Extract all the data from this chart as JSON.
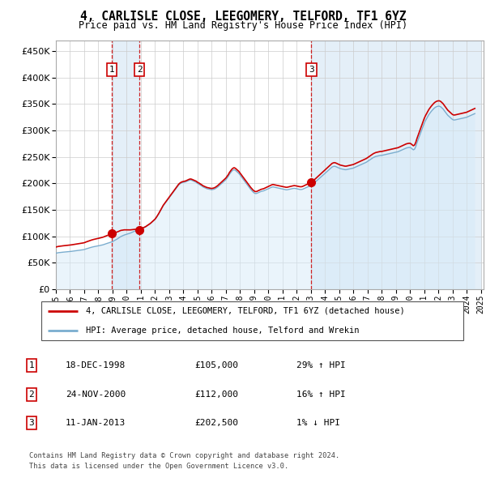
{
  "title": "4, CARLISLE CLOSE, LEEGOMERY, TELFORD, TF1 6YZ",
  "subtitle": "Price paid vs. HM Land Registry's House Price Index (HPI)",
  "legend_line1": "4, CARLISLE CLOSE, LEEGOMERY, TELFORD, TF1 6YZ (detached house)",
  "legend_line2": "HPI: Average price, detached house, Telford and Wrekin",
  "footer1": "Contains HM Land Registry data © Crown copyright and database right 2024.",
  "footer2": "This data is licensed under the Open Government Licence v3.0.",
  "sale_color": "#cc0000",
  "hpi_color": "#7aadcf",
  "hpi_fill_color": "#ddeeff",
  "vline_color": "#cc0000",
  "ylim": [
    0,
    470000
  ],
  "yticks": [
    0,
    50000,
    100000,
    150000,
    200000,
    250000,
    300000,
    350000,
    400000,
    450000
  ],
  "sales": [
    {
      "date_num": 1998.96,
      "price": 105000,
      "label": "1"
    },
    {
      "date_num": 2000.9,
      "price": 112000,
      "label": "2"
    },
    {
      "date_num": 2013.04,
      "price": 202500,
      "label": "3"
    }
  ],
  "table_rows": [
    {
      "num": "1",
      "date": "18-DEC-1998",
      "price": "£105,000",
      "hpi": "29% ↑ HPI"
    },
    {
      "num": "2",
      "date": "24-NOV-2000",
      "price": "£112,000",
      "hpi": "16% ↑ HPI"
    },
    {
      "num": "3",
      "date": "11-JAN-2013",
      "price": "£202,500",
      "hpi": "1% ↓ HPI"
    }
  ],
  "hpi_monthly": {
    "dates": [
      1995.0,
      1995.083,
      1995.167,
      1995.25,
      1995.333,
      1995.417,
      1995.5,
      1995.583,
      1995.667,
      1995.75,
      1995.833,
      1995.917,
      1996.0,
      1996.083,
      1996.167,
      1996.25,
      1996.333,
      1996.417,
      1996.5,
      1996.583,
      1996.667,
      1996.75,
      1996.833,
      1996.917,
      1997.0,
      1997.083,
      1997.167,
      1997.25,
      1997.333,
      1997.417,
      1997.5,
      1997.583,
      1997.667,
      1997.75,
      1997.833,
      1997.917,
      1998.0,
      1998.083,
      1998.167,
      1998.25,
      1998.333,
      1998.417,
      1998.5,
      1998.583,
      1998.667,
      1998.75,
      1998.833,
      1998.917,
      1999.0,
      1999.083,
      1999.167,
      1999.25,
      1999.333,
      1999.417,
      1999.5,
      1999.583,
      1999.667,
      1999.75,
      1999.833,
      1999.917,
      2000.0,
      2000.083,
      2000.167,
      2000.25,
      2000.333,
      2000.417,
      2000.5,
      2000.583,
      2000.667,
      2000.75,
      2000.833,
      2000.917,
      2001.0,
      2001.083,
      2001.167,
      2001.25,
      2001.333,
      2001.417,
      2001.5,
      2001.583,
      2001.667,
      2001.75,
      2001.833,
      2001.917,
      2002.0,
      2002.083,
      2002.167,
      2002.25,
      2002.333,
      2002.417,
      2002.5,
      2002.583,
      2002.667,
      2002.75,
      2002.833,
      2002.917,
      2003.0,
      2003.083,
      2003.167,
      2003.25,
      2003.333,
      2003.417,
      2003.5,
      2003.583,
      2003.667,
      2003.75,
      2003.833,
      2003.917,
      2004.0,
      2004.083,
      2004.167,
      2004.25,
      2004.333,
      2004.417,
      2004.5,
      2004.583,
      2004.667,
      2004.75,
      2004.833,
      2004.917,
      2005.0,
      2005.083,
      2005.167,
      2005.25,
      2005.333,
      2005.417,
      2005.5,
      2005.583,
      2005.667,
      2005.75,
      2005.833,
      2005.917,
      2006.0,
      2006.083,
      2006.167,
      2006.25,
      2006.333,
      2006.417,
      2006.5,
      2006.583,
      2006.667,
      2006.75,
      2006.833,
      2006.917,
      2007.0,
      2007.083,
      2007.167,
      2007.25,
      2007.333,
      2007.417,
      2007.5,
      2007.583,
      2007.667,
      2007.75,
      2007.833,
      2007.917,
      2008.0,
      2008.083,
      2008.167,
      2008.25,
      2008.333,
      2008.417,
      2008.5,
      2008.583,
      2008.667,
      2008.75,
      2008.833,
      2008.917,
      2009.0,
      2009.083,
      2009.167,
      2009.25,
      2009.333,
      2009.417,
      2009.5,
      2009.583,
      2009.667,
      2009.75,
      2009.833,
      2009.917,
      2010.0,
      2010.083,
      2010.167,
      2010.25,
      2010.333,
      2010.417,
      2010.5,
      2010.583,
      2010.667,
      2010.75,
      2010.833,
      2010.917,
      2011.0,
      2011.083,
      2011.167,
      2011.25,
      2011.333,
      2011.417,
      2011.5,
      2011.583,
      2011.667,
      2011.75,
      2011.833,
      2011.917,
      2012.0,
      2012.083,
      2012.167,
      2012.25,
      2012.333,
      2012.417,
      2012.5,
      2012.583,
      2012.667,
      2012.75,
      2012.833,
      2012.917,
      2013.0,
      2013.083,
      2013.167,
      2013.25,
      2013.333,
      2013.417,
      2013.5,
      2013.583,
      2013.667,
      2013.75,
      2013.833,
      2013.917,
      2014.0,
      2014.083,
      2014.167,
      2014.25,
      2014.333,
      2014.417,
      2014.5,
      2014.583,
      2014.667,
      2014.75,
      2014.833,
      2014.917,
      2015.0,
      2015.083,
      2015.167,
      2015.25,
      2015.333,
      2015.417,
      2015.5,
      2015.583,
      2015.667,
      2015.75,
      2015.833,
      2015.917,
      2016.0,
      2016.083,
      2016.167,
      2016.25,
      2016.333,
      2016.417,
      2016.5,
      2016.583,
      2016.667,
      2016.75,
      2016.833,
      2016.917,
      2017.0,
      2017.083,
      2017.167,
      2017.25,
      2017.333,
      2017.417,
      2017.5,
      2017.583,
      2017.667,
      2017.75,
      2017.833,
      2017.917,
      2018.0,
      2018.083,
      2018.167,
      2018.25,
      2018.333,
      2018.417,
      2018.5,
      2018.583,
      2018.667,
      2018.75,
      2018.833,
      2018.917,
      2019.0,
      2019.083,
      2019.167,
      2019.25,
      2019.333,
      2019.417,
      2019.5,
      2019.583,
      2019.667,
      2019.75,
      2019.833,
      2019.917,
      2020.0,
      2020.083,
      2020.167,
      2020.25,
      2020.333,
      2020.417,
      2020.5,
      2020.583,
      2020.667,
      2020.75,
      2020.833,
      2020.917,
      2021.0,
      2021.083,
      2021.167,
      2021.25,
      2021.333,
      2021.417,
      2021.5,
      2021.583,
      2021.667,
      2021.75,
      2021.833,
      2021.917,
      2022.0,
      2022.083,
      2022.167,
      2022.25,
      2022.333,
      2022.417,
      2022.5,
      2022.583,
      2022.667,
      2022.75,
      2022.833,
      2022.917,
      2023.0,
      2023.083,
      2023.167,
      2023.25,
      2023.333,
      2023.417,
      2023.5,
      2023.583,
      2023.667,
      2023.75,
      2023.833,
      2023.917,
      2024.0,
      2024.083,
      2024.167,
      2024.25,
      2024.333,
      2024.417,
      2024.5,
      2024.583
    ],
    "values": [
      68000,
      68500,
      69000,
      69200,
      69500,
      69800,
      70000,
      70200,
      70400,
      70600,
      70800,
      71000,
      71200,
      71500,
      71800,
      72000,
      72300,
      72600,
      73000,
      73300,
      73600,
      74000,
      74300,
      74600,
      75000,
      75800,
      76500,
      77200,
      77900,
      78500,
      79200,
      79800,
      80300,
      80800,
      81200,
      81600,
      82000,
      82500,
      83000,
      83500,
      84000,
      84800,
      85500,
      86300,
      87000,
      87800,
      88500,
      89200,
      90000,
      91200,
      92500,
      93800,
      95000,
      96500,
      98000,
      99500,
      100500,
      101500,
      102500,
      103200,
      103800,
      104500,
      105200,
      106000,
      107000,
      108000,
      109000,
      110000,
      110500,
      111000,
      111500,
      112000,
      113000,
      114500,
      116000,
      117000,
      118000,
      119500,
      121000,
      122500,
      124000,
      126000,
      128000,
      130000,
      132000,
      135000,
      138500,
      142000,
      146000,
      150000,
      154000,
      158000,
      161000,
      164000,
      167000,
      170000,
      173000,
      176000,
      179000,
      182000,
      185000,
      188000,
      191000,
      194000,
      197000,
      199000,
      200500,
      201500,
      202000,
      202500,
      203000,
      204000,
      205000,
      206000,
      206500,
      206000,
      205000,
      204000,
      203000,
      202000,
      200000,
      199000,
      197500,
      196000,
      194500,
      193000,
      192000,
      191000,
      190000,
      189500,
      189000,
      188500,
      188000,
      188500,
      189000,
      190000,
      191500,
      193000,
      195000,
      197000,
      199000,
      201000,
      203000,
      205000,
      207000,
      210000,
      213000,
      217000,
      220000,
      223000,
      225000,
      226000,
      225000,
      223000,
      221000,
      219000,
      216000,
      213000,
      210000,
      207000,
      204000,
      201000,
      198000,
      195000,
      192000,
      189000,
      186500,
      184000,
      182000,
      181000,
      181000,
      182000,
      183000,
      184000,
      185000,
      185500,
      186000,
      187000,
      188000,
      189000,
      190000,
      191000,
      192000,
      193000,
      193500,
      193000,
      192500,
      192000,
      191500,
      191000,
      190500,
      190000,
      189500,
      189000,
      188500,
      188000,
      188000,
      188500,
      189000,
      189500,
      190000,
      190500,
      190800,
      190500,
      190000,
      189500,
      189000,
      188500,
      188500,
      189000,
      190000,
      191000,
      192000,
      193000,
      194000,
      195000,
      196000,
      197500,
      199000,
      201000,
      203000,
      205000,
      207000,
      209000,
      211000,
      213000,
      215000,
      217000,
      219000,
      221000,
      223000,
      225000,
      227000,
      229000,
      231000,
      232000,
      232500,
      232000,
      231000,
      230000,
      229000,
      228000,
      227500,
      227000,
      226500,
      226000,
      226000,
      226500,
      227000,
      227500,
      228000,
      228500,
      229000,
      230000,
      231000,
      232000,
      233000,
      234000,
      235000,
      236000,
      237000,
      238000,
      239000,
      240000,
      241500,
      243000,
      244500,
      246000,
      247500,
      249000,
      250000,
      251000,
      251500,
      252000,
      252500,
      253000,
      253000,
      253500,
      254000,
      254500,
      255000,
      255500,
      256000,
      256500,
      257000,
      257500,
      258000,
      258500,
      259000,
      259500,
      260000,
      261000,
      262000,
      263000,
      264000,
      265000,
      266000,
      267000,
      267500,
      268000,
      268000,
      267000,
      265000,
      263500,
      265000,
      270000,
      277000,
      283000,
      289000,
      295000,
      301000,
      307000,
      313000,
      318000,
      322000,
      326000,
      330000,
      333000,
      336000,
      338500,
      341000,
      343000,
      344500,
      345500,
      346000,
      346000,
      345000,
      343000,
      341000,
      338000,
      335000,
      332000,
      329000,
      327000,
      325000,
      323000,
      321000,
      320000,
      320000,
      320500,
      321000,
      321500,
      322000,
      322500,
      323000,
      323500,
      324000,
      324500,
      325000,
      326000,
      327000,
      328000,
      329000,
      330000,
      331000,
      332000
    ]
  },
  "x_tick_years": [
    1995,
    1996,
    1997,
    1998,
    1999,
    2000,
    2001,
    2002,
    2003,
    2004,
    2005,
    2006,
    2007,
    2008,
    2009,
    2010,
    2011,
    2012,
    2013,
    2014,
    2015,
    2016,
    2017,
    2018,
    2019,
    2020,
    2021,
    2022,
    2023,
    2024,
    2025
  ]
}
